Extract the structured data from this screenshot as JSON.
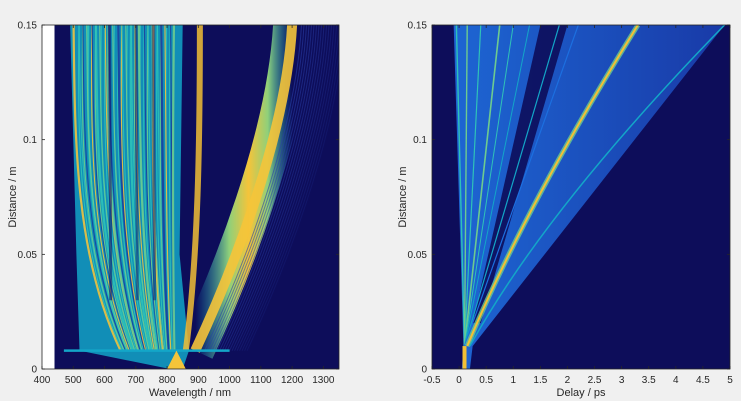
{
  "chart_data": [
    {
      "type": "heatmap",
      "title": "",
      "xlabel": "Wavelength / nm",
      "ylabel": "Distance / m",
      "xlim": [
        400,
        1350
      ],
      "ylim": [
        0,
        0.15
      ],
      "xticks": [
        400,
        500,
        600,
        700,
        800,
        900,
        1000,
        1100,
        1200,
        1300
      ],
      "yticks": [
        0,
        0.05,
        0.1,
        0.15
      ],
      "xtick_labels": [
        "400",
        "500",
        "600",
        "700",
        "800",
        "900",
        "1000",
        "1100",
        "1200",
        "1300"
      ],
      "ytick_labels": [
        "0",
        "0.05",
        "0.1",
        "0.15"
      ],
      "colormap": "parula",
      "features": {
        "data_start_wavelength": 440,
        "pump_wavelength": 830,
        "broadening_onset_distance": 0.008,
        "soliton_band": {
          "center_start": 1000,
          "center_end": 1200,
          "distance_end": 0.15
        },
        "visible_band": [
          500,
          820
        ]
      }
    },
    {
      "type": "heatmap",
      "title": "",
      "xlabel": "Delay / ps",
      "ylabel": "Distance / m",
      "xlim": [
        -0.5,
        5
      ],
      "ylim": [
        0,
        0.15
      ],
      "xticks": [
        -0.5,
        0,
        0.5,
        1,
        1.5,
        2,
        2.5,
        3,
        3.5,
        4,
        4.5,
        5
      ],
      "yticks": [
        0,
        0.05,
        0.1,
        0.15
      ],
      "xtick_labels": [
        "-0.5",
        "0",
        "0.5",
        "1",
        "1.5",
        "2",
        "2.5",
        "3",
        "3.5",
        "4",
        "4.5",
        "5"
      ],
      "ytick_labels": [
        "0",
        "0.05",
        "0.1",
        "0.15"
      ],
      "colormap": "parula",
      "features": {
        "origin_delay": 0.1,
        "split_distance": 0.01,
        "soliton_delay_at_end": 3.3,
        "dispersive_wave_delay_at_end": 4.9
      }
    }
  ],
  "colors": {
    "background": "#0d0d5a",
    "dark_blue": "#2a2a8f",
    "blue": "#1c6fe0",
    "cyan": "#12b0d0",
    "green": "#6cc890",
    "yellow": "#f2c035",
    "figure_bg": "#f0f0f0"
  }
}
